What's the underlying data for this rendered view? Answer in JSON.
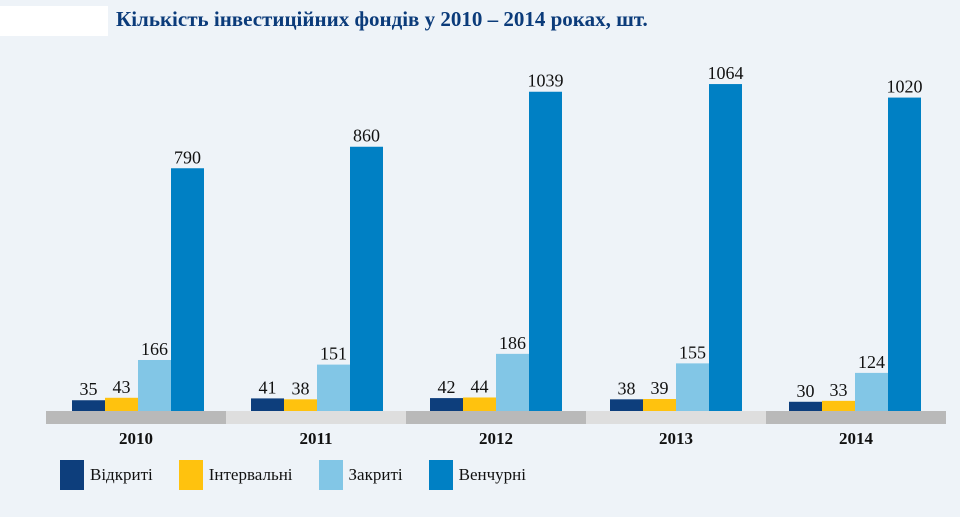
{
  "chart_data": {
    "type": "bar",
    "title": "Кількість інвестиційних фондів у 2010 – 2014 роках, шт.",
    "categories": [
      "2010",
      "2011",
      "2012",
      "2013",
      "2014"
    ],
    "series": [
      {
        "name": "Відкриті",
        "color": "#0d3e7c",
        "values": [
          35,
          41,
          42,
          38,
          30
        ]
      },
      {
        "name": "Інтервальні",
        "color": "#ffc20e",
        "values": [
          43,
          38,
          44,
          39,
          33
        ]
      },
      {
        "name": "Закриті",
        "color": "#82c6e6",
        "values": [
          166,
          151,
          186,
          155,
          124
        ]
      },
      {
        "name": "Венчурні",
        "color": "#0080c4",
        "values": [
          790,
          860,
          1039,
          1064,
          1020
        ]
      }
    ],
    "ylim": [
      0,
      1100
    ],
    "legend": "bottom",
    "grid": false,
    "category_band_colors": [
      "#b9b9b9",
      "#dedede"
    ]
  }
}
